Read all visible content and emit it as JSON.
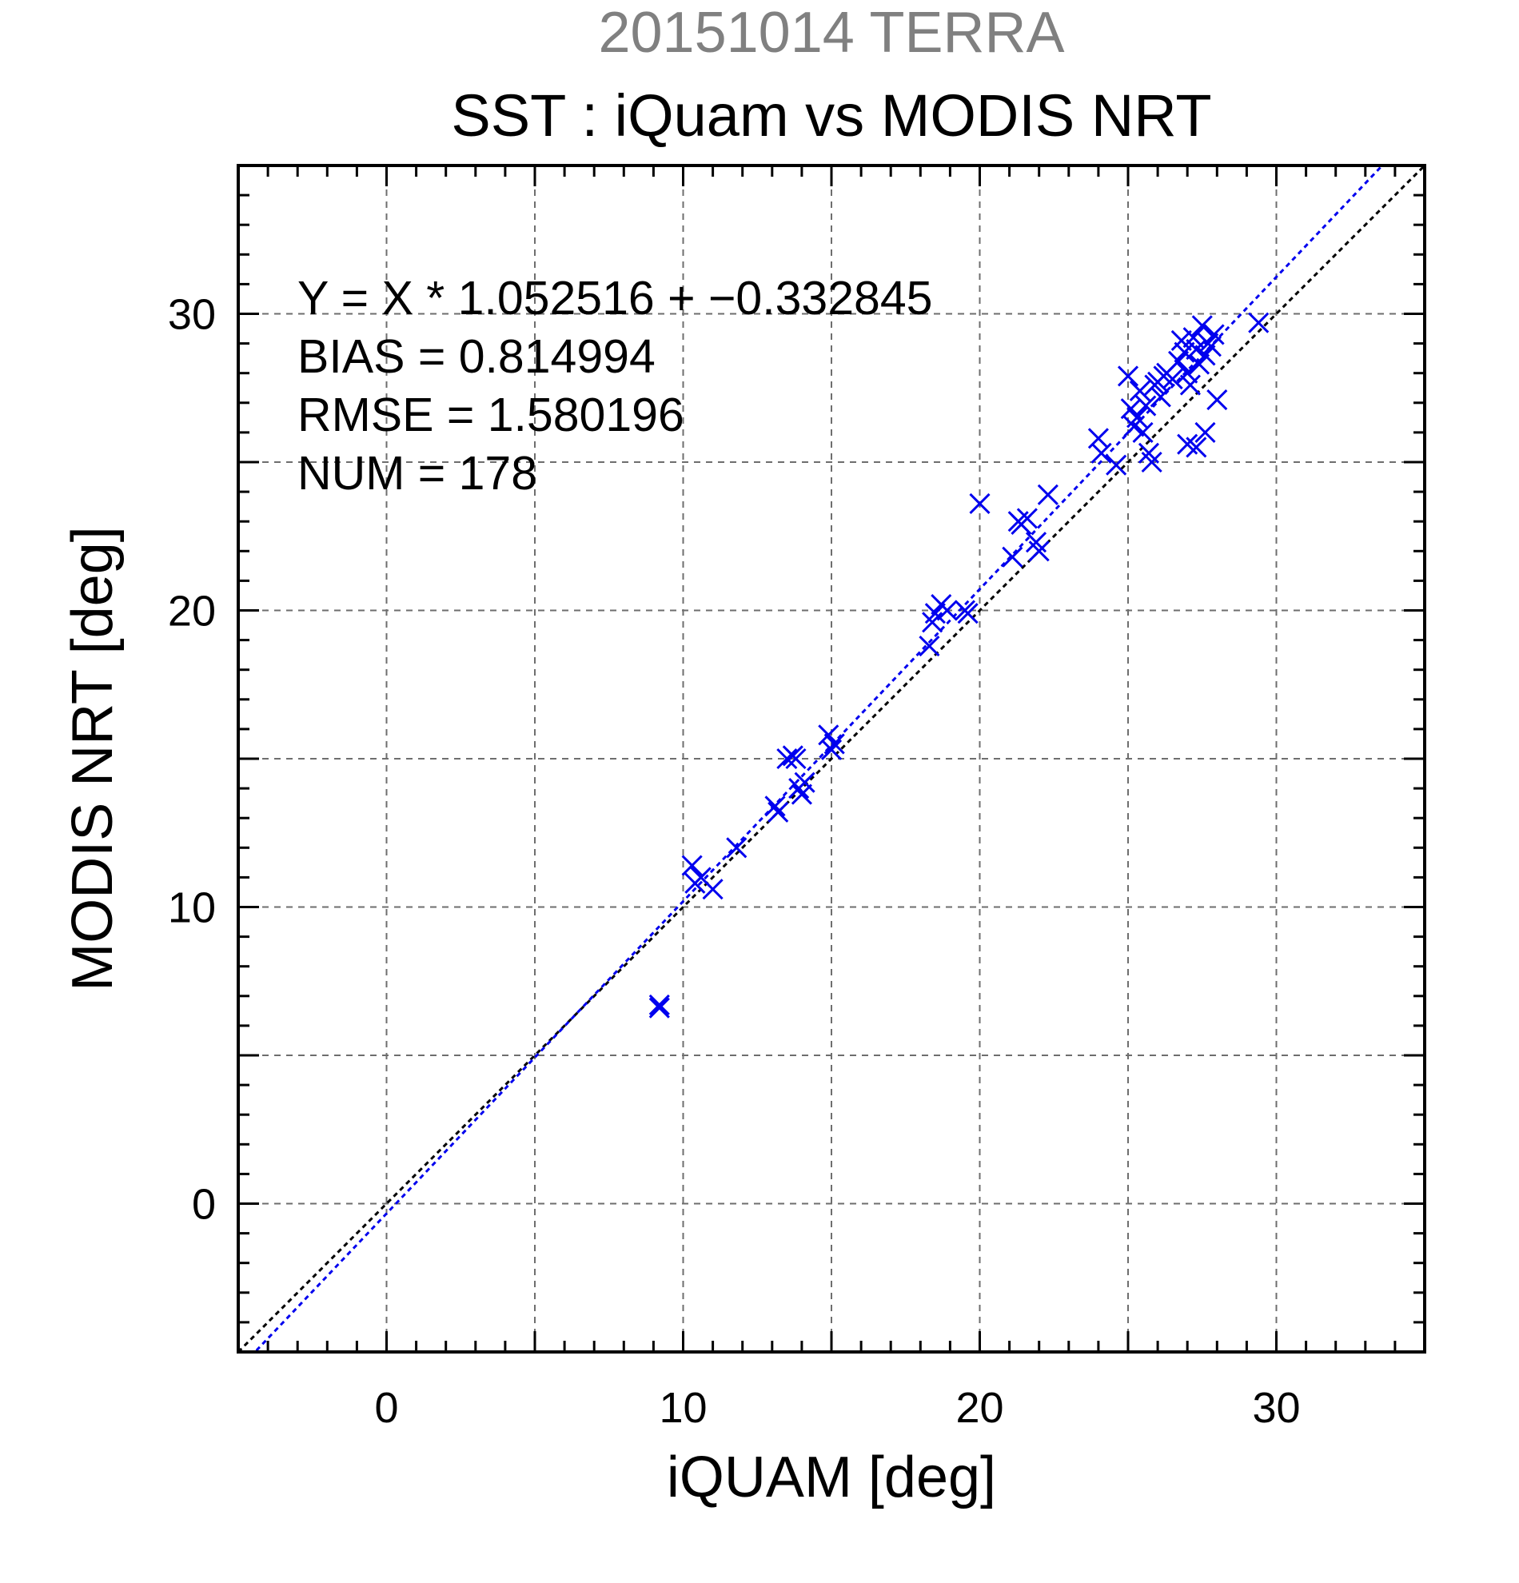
{
  "chart_data": {
    "type": "scatter",
    "suptitle": "20151014 TERRA",
    "title": "SST : iQuam vs MODIS NRT",
    "xlabel": "iQUAM [deg]",
    "ylabel": "MODIS NRT [deg]",
    "xlim": [
      -5,
      35
    ],
    "ylim": [
      -5,
      35
    ],
    "xticks": [
      "0",
      "10",
      "20",
      "30"
    ],
    "yticks": [
      "0",
      "10",
      "20",
      "30"
    ],
    "tick_values": [
      0,
      10,
      20,
      30
    ],
    "grid": true,
    "annotations": [
      "Y = X * 1.052516 + −0.332845",
      "BIAS = 0.814994",
      "RMSE = 1.580196",
      "NUM = 178"
    ],
    "fit_line": {
      "slope": 1.052516,
      "intercept": -0.332845,
      "color": "#0000ee"
    },
    "identity_line": {
      "slope": 1,
      "intercept": 0,
      "color": "#000000"
    },
    "colors": {
      "series": "#0000ee",
      "suptitle": "#808080",
      "grid": "#6e6e6e"
    },
    "series": [
      {
        "marker": "x",
        "points": [
          [
            9.2,
            6.6
          ],
          [
            9.2,
            6.7
          ],
          [
            10.3,
            11.4
          ],
          [
            10.4,
            10.8
          ],
          [
            10.6,
            11.0
          ],
          [
            11.0,
            10.6
          ],
          [
            11.8,
            12.0
          ],
          [
            13.1,
            13.4
          ],
          [
            13.2,
            13.2
          ],
          [
            13.5,
            15.0
          ],
          [
            13.7,
            15.1
          ],
          [
            13.8,
            15.0
          ],
          [
            13.9,
            14.0
          ],
          [
            14.0,
            13.8
          ],
          [
            14.1,
            14.2
          ],
          [
            14.9,
            15.8
          ],
          [
            15.0,
            15.3
          ],
          [
            15.1,
            15.5
          ],
          [
            18.3,
            18.8
          ],
          [
            18.4,
            19.6
          ],
          [
            18.5,
            19.9
          ],
          [
            18.7,
            20.2
          ],
          [
            18.9,
            20.0
          ],
          [
            19.5,
            20.0
          ],
          [
            19.6,
            19.9
          ],
          [
            20.0,
            23.6
          ],
          [
            21.1,
            21.8
          ],
          [
            21.3,
            23.0
          ],
          [
            21.4,
            22.9
          ],
          [
            21.6,
            23.1
          ],
          [
            21.9,
            22.3
          ],
          [
            22.0,
            22.0
          ],
          [
            22.3,
            23.9
          ],
          [
            24.0,
            25.8
          ],
          [
            24.1,
            25.3
          ],
          [
            24.6,
            24.9
          ],
          [
            25.0,
            27.9
          ],
          [
            25.1,
            26.8
          ],
          [
            25.2,
            26.2
          ],
          [
            25.3,
            26.5
          ],
          [
            25.4,
            27.4
          ],
          [
            25.5,
            26.0
          ],
          [
            25.6,
            26.9
          ],
          [
            25.7,
            25.3
          ],
          [
            25.8,
            25.0
          ],
          [
            25.9,
            27.6
          ],
          [
            26.0,
            27.7
          ],
          [
            26.1,
            27.2
          ],
          [
            26.2,
            27.9
          ],
          [
            26.3,
            28.0
          ],
          [
            26.5,
            27.8
          ],
          [
            26.7,
            28.4
          ],
          [
            26.8,
            29.1
          ],
          [
            26.9,
            28.7
          ],
          [
            27.0,
            28.0
          ],
          [
            27.0,
            25.6
          ],
          [
            27.1,
            27.6
          ],
          [
            27.2,
            29.2
          ],
          [
            27.3,
            28.8
          ],
          [
            27.3,
            25.5
          ],
          [
            27.4,
            28.3
          ],
          [
            27.5,
            29.6
          ],
          [
            27.6,
            26.0
          ],
          [
            27.6,
            28.6
          ],
          [
            27.7,
            29.0
          ],
          [
            27.8,
            28.9
          ],
          [
            27.9,
            29.3
          ],
          [
            28.0,
            27.1
          ],
          [
            29.4,
            29.7
          ]
        ]
      }
    ]
  }
}
